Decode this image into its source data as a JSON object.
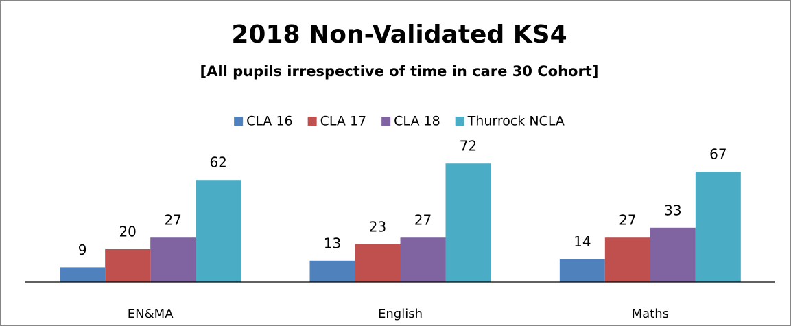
{
  "chart_data": {
    "type": "bar",
    "title": "2018 Non-Validated KS4",
    "subtitle": "[All pupils irrespective of time in care 30 Cohort]",
    "categories": [
      "EN&MA",
      "English",
      "Maths"
    ],
    "series": [
      {
        "name": "CLA 16",
        "color": "#4f81bd",
        "values": [
          9,
          13,
          14
        ]
      },
      {
        "name": "CLA 17",
        "color": "#c0504d",
        "values": [
          20,
          23,
          27
        ]
      },
      {
        "name": "CLA 18",
        "color": "#8064a2",
        "values": [
          27,
          27,
          33
        ]
      },
      {
        "name": "Thurrock NCLA",
        "color": "#4bacc6",
        "values": [
          62,
          72,
          67
        ]
      }
    ],
    "ylim": [
      0,
      80
    ],
    "legend": "top"
  }
}
